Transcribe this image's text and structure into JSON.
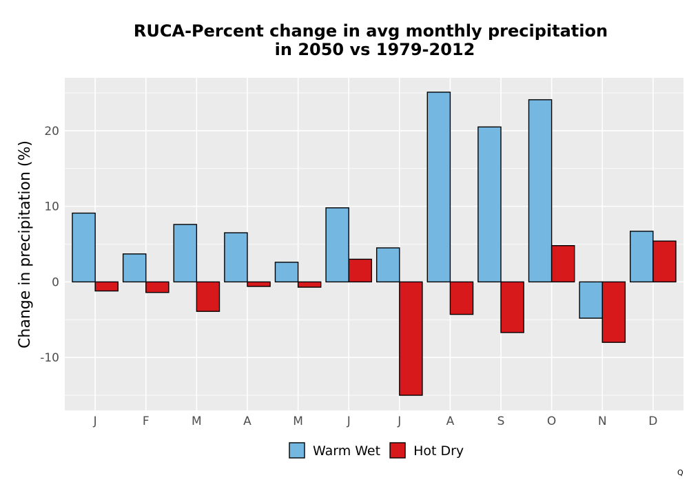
{
  "chart_data": {
    "type": "bar",
    "title": "RUCA-Percent change in avg monthly precipitation",
    "subtitle": "in 2050 vs 1979-2012",
    "xlabel": "",
    "ylabel": "Change in precipitation (%)",
    "categories": [
      "J",
      "F",
      "M",
      "A",
      "M",
      "J",
      "J",
      "A",
      "S",
      "O",
      "N",
      "D"
    ],
    "ylim": [
      -17,
      27
    ],
    "yticks": [
      -10,
      0,
      10,
      20
    ],
    "grid": true,
    "legend_position": "bottom",
    "series": [
      {
        "name": "Warm Wet",
        "color": "#74b7e1",
        "values": [
          9.1,
          3.7,
          7.6,
          6.5,
          2.6,
          9.8,
          4.5,
          25.1,
          20.5,
          24.1,
          -4.8,
          6.7
        ]
      },
      {
        "name": "Hot Dry",
        "color": "#d7191c",
        "values": [
          -1.2,
          -1.4,
          -3.9,
          -0.6,
          -0.7,
          3.0,
          -15.0,
          -4.3,
          -6.7,
          4.8,
          -8.0,
          5.4
        ]
      }
    ]
  },
  "footer": {
    "corner_mark": "Q"
  },
  "colors": {
    "panel_bg": "#ebebeb",
    "grid": "#ffffff",
    "bar_outline": "#000000"
  }
}
